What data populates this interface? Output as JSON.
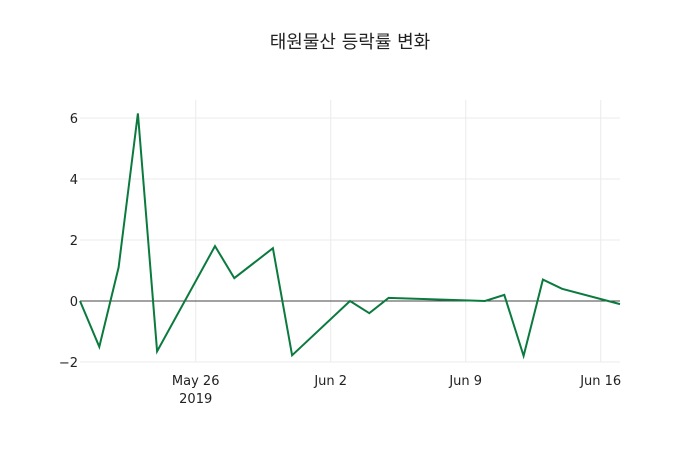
{
  "chart_data": {
    "type": "line",
    "title": "태원물산 등락률 변화",
    "xlabel": "",
    "ylabel": "",
    "x": [
      "2019-05-20",
      "2019-05-21",
      "2019-05-22",
      "2019-05-23",
      "2019-05-24",
      "2019-05-27",
      "2019-05-28",
      "2019-05-30",
      "2019-05-31",
      "2019-06-03",
      "2019-06-04",
      "2019-06-05",
      "2019-06-10",
      "2019-06-11",
      "2019-06-12",
      "2019-06-13",
      "2019-06-14",
      "2019-06-17"
    ],
    "series": [
      {
        "name": "등락률",
        "color": "#0b7a3e",
        "values": [
          0.0,
          -1.5,
          1.1,
          6.15,
          -1.65,
          1.8,
          0.75,
          1.73,
          -1.78,
          0.0,
          -0.4,
          0.1,
          0.0,
          0.2,
          -1.8,
          0.7,
          0.4,
          -0.1
        ]
      }
    ],
    "ylim": [
      -2.2,
      6.6
    ],
    "yticks": [
      -2,
      0,
      2,
      4,
      6
    ],
    "ytick_labels": [
      "−2",
      "0",
      "2",
      "4",
      "6"
    ],
    "xticks": [
      "2019-05-26",
      "2019-06-02",
      "2019-06-09",
      "2019-06-16"
    ],
    "xtick_labels": [
      "May 26\n2019",
      "Jun 2",
      "Jun 9",
      "Jun 16"
    ],
    "grid": true,
    "zero_line": true,
    "legend": null
  }
}
